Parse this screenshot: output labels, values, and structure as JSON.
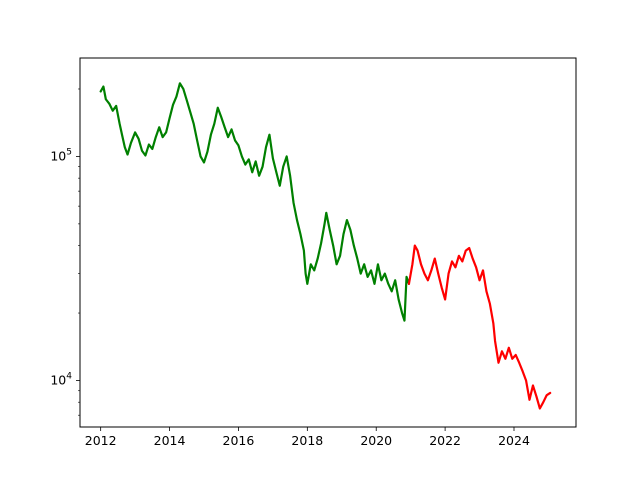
{
  "chart_data": {
    "type": "line",
    "title": "",
    "xlabel": "",
    "ylabel": "",
    "xlim": [
      2011.4,
      2025.8
    ],
    "ylim": [
      6200,
      275000
    ],
    "y_scale": "log",
    "grid": false,
    "legend": "none",
    "x_ticks": [
      {
        "value": 2012,
        "label": "2012"
      },
      {
        "value": 2014,
        "label": "2014"
      },
      {
        "value": 2016,
        "label": "2016"
      },
      {
        "value": 2018,
        "label": "2018"
      },
      {
        "value": 2020,
        "label": "2020"
      },
      {
        "value": 2022,
        "label": "2022"
      },
      {
        "value": 2024,
        "label": "2024"
      }
    ],
    "y_ticks": [
      {
        "value": 10000,
        "base": "10",
        "exp": "4"
      },
      {
        "value": 100000,
        "base": "10",
        "exp": "5"
      }
    ],
    "series": [
      {
        "color": "#008000",
        "points": [
          [
            2012.0,
            195000
          ],
          [
            2012.08,
            205000
          ],
          [
            2012.15,
            180000
          ],
          [
            2012.25,
            172000
          ],
          [
            2012.35,
            160000
          ],
          [
            2012.45,
            168000
          ],
          [
            2012.55,
            140000
          ],
          [
            2012.62,
            125000
          ],
          [
            2012.7,
            110000
          ],
          [
            2012.78,
            102000
          ],
          [
            2012.88,
            115000
          ],
          [
            2013.0,
            128000
          ],
          [
            2013.1,
            120000
          ],
          [
            2013.2,
            106000
          ],
          [
            2013.3,
            101000
          ],
          [
            2013.4,
            113000
          ],
          [
            2013.5,
            108000
          ],
          [
            2013.6,
            122000
          ],
          [
            2013.7,
            135000
          ],
          [
            2013.8,
            122000
          ],
          [
            2013.9,
            128000
          ],
          [
            2014.0,
            148000
          ],
          [
            2014.1,
            170000
          ],
          [
            2014.2,
            185000
          ],
          [
            2014.3,
            212000
          ],
          [
            2014.4,
            200000
          ],
          [
            2014.5,
            178000
          ],
          [
            2014.6,
            158000
          ],
          [
            2014.7,
            140000
          ],
          [
            2014.8,
            118000
          ],
          [
            2014.9,
            100000
          ],
          [
            2015.0,
            94000
          ],
          [
            2015.1,
            105000
          ],
          [
            2015.2,
            125000
          ],
          [
            2015.3,
            140000
          ],
          [
            2015.4,
            165000
          ],
          [
            2015.5,
            150000
          ],
          [
            2015.6,
            135000
          ],
          [
            2015.7,
            122000
          ],
          [
            2015.8,
            132000
          ],
          [
            2015.9,
            118000
          ],
          [
            2016.0,
            112000
          ],
          [
            2016.1,
            100000
          ],
          [
            2016.2,
            92000
          ],
          [
            2016.3,
            97000
          ],
          [
            2016.4,
            85000
          ],
          [
            2016.5,
            95000
          ],
          [
            2016.6,
            82000
          ],
          [
            2016.7,
            90000
          ],
          [
            2016.8,
            110000
          ],
          [
            2016.9,
            125000
          ],
          [
            2017.0,
            98000
          ],
          [
            2017.1,
            85000
          ],
          [
            2017.2,
            74000
          ],
          [
            2017.3,
            90000
          ],
          [
            2017.4,
            100000
          ],
          [
            2017.5,
            82000
          ],
          [
            2017.6,
            62000
          ],
          [
            2017.7,
            52000
          ],
          [
            2017.8,
            45000
          ],
          [
            2017.9,
            38000
          ],
          [
            2017.95,
            30000
          ],
          [
            2018.0,
            27000
          ],
          [
            2018.1,
            33000
          ],
          [
            2018.2,
            31000
          ],
          [
            2018.3,
            35000
          ],
          [
            2018.4,
            41000
          ],
          [
            2018.5,
            50000
          ],
          [
            2018.55,
            56000
          ],
          [
            2018.65,
            47000
          ],
          [
            2018.75,
            40000
          ],
          [
            2018.85,
            33000
          ],
          [
            2018.95,
            36000
          ],
          [
            2019.05,
            45000
          ],
          [
            2019.15,
            52000
          ],
          [
            2019.25,
            47000
          ],
          [
            2019.35,
            40000
          ],
          [
            2019.45,
            35000
          ],
          [
            2019.55,
            30000
          ],
          [
            2019.65,
            33000
          ],
          [
            2019.75,
            29000
          ],
          [
            2019.85,
            31000
          ],
          [
            2019.95,
            27000
          ],
          [
            2020.05,
            33000
          ],
          [
            2020.15,
            28000
          ],
          [
            2020.25,
            30000
          ],
          [
            2020.35,
            27000
          ],
          [
            2020.45,
            25000
          ],
          [
            2020.55,
            28000
          ],
          [
            2020.65,
            23000
          ],
          [
            2020.75,
            20000
          ],
          [
            2020.82,
            18500
          ],
          [
            2020.88,
            29000
          ],
          [
            2020.95,
            27000
          ]
        ]
      },
      {
        "color": "#ff0000",
        "points": [
          [
            2020.95,
            27000
          ],
          [
            2021.05,
            33000
          ],
          [
            2021.12,
            40000
          ],
          [
            2021.2,
            38000
          ],
          [
            2021.3,
            33000
          ],
          [
            2021.4,
            30000
          ],
          [
            2021.5,
            28000
          ],
          [
            2021.6,
            31000
          ],
          [
            2021.7,
            35000
          ],
          [
            2021.8,
            30000
          ],
          [
            2021.9,
            26000
          ],
          [
            2022.0,
            23000
          ],
          [
            2022.1,
            30000
          ],
          [
            2022.2,
            34000
          ],
          [
            2022.3,
            32000
          ],
          [
            2022.4,
            36000
          ],
          [
            2022.5,
            34000
          ],
          [
            2022.6,
            38000
          ],
          [
            2022.7,
            39000
          ],
          [
            2022.8,
            35000
          ],
          [
            2022.9,
            32000
          ],
          [
            2023.0,
            28000
          ],
          [
            2023.1,
            31000
          ],
          [
            2023.2,
            25000
          ],
          [
            2023.3,
            22000
          ],
          [
            2023.4,
            18000
          ],
          [
            2023.45,
            15000
          ],
          [
            2023.55,
            12000
          ],
          [
            2023.65,
            13500
          ],
          [
            2023.75,
            12500
          ],
          [
            2023.85,
            14000
          ],
          [
            2023.95,
            12500
          ],
          [
            2024.05,
            13000
          ],
          [
            2024.15,
            12000
          ],
          [
            2024.25,
            11000
          ],
          [
            2024.35,
            10000
          ],
          [
            2024.45,
            8200
          ],
          [
            2024.55,
            9500
          ],
          [
            2024.65,
            8500
          ],
          [
            2024.75,
            7500
          ],
          [
            2024.85,
            8000
          ],
          [
            2024.95,
            8600
          ],
          [
            2025.05,
            8800
          ]
        ]
      }
    ]
  }
}
